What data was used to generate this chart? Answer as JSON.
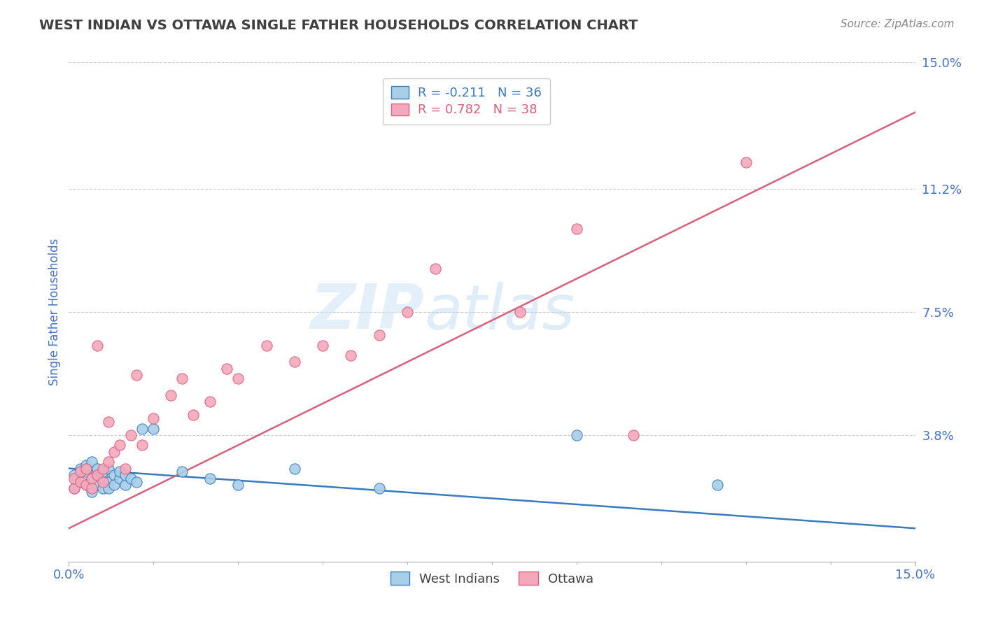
{
  "title": "WEST INDIAN VS OTTAWA SINGLE FATHER HOUSEHOLDS CORRELATION CHART",
  "source": "Source: ZipAtlas.com",
  "ylabel": "Single Father Households",
  "xlim": [
    0.0,
    0.15
  ],
  "ylim": [
    0.0,
    0.15
  ],
  "ytick_values": [
    0.038,
    0.075,
    0.112,
    0.15
  ],
  "ytick_labels": [
    "3.8%",
    "7.5%",
    "11.2%",
    "15.0%"
  ],
  "legend1_label": "R = -0.211   N = 36",
  "legend2_label": "R = 0.782   N = 38",
  "color_blue": "#a8cfe8",
  "color_pink": "#f4a8bc",
  "color_line_blue": "#3a7abf",
  "color_line_pink": "#d9607a",
  "watermark_zip": "ZIP",
  "watermark_atlas": "atlas",
  "title_color": "#404040",
  "tick_label_color": "#4472c4",
  "grid_color": "#cccccc",
  "west_indian_x": [
    0.001,
    0.001,
    0.002,
    0.002,
    0.003,
    0.003,
    0.003,
    0.004,
    0.004,
    0.004,
    0.005,
    0.005,
    0.005,
    0.006,
    0.006,
    0.006,
    0.007,
    0.007,
    0.007,
    0.008,
    0.008,
    0.009,
    0.009,
    0.01,
    0.01,
    0.011,
    0.012,
    0.013,
    0.015,
    0.02,
    0.025,
    0.03,
    0.04,
    0.055,
    0.09,
    0.115
  ],
  "west_indian_y": [
    0.026,
    0.022,
    0.028,
    0.024,
    0.027,
    0.023,
    0.029,
    0.025,
    0.021,
    0.03,
    0.026,
    0.023,
    0.028,
    0.025,
    0.022,
    0.027,
    0.024,
    0.028,
    0.022,
    0.026,
    0.023,
    0.025,
    0.027,
    0.023,
    0.026,
    0.025,
    0.024,
    0.04,
    0.04,
    0.027,
    0.025,
    0.023,
    0.028,
    0.022,
    0.038,
    0.023
  ],
  "ottawa_x": [
    0.001,
    0.001,
    0.002,
    0.002,
    0.003,
    0.003,
    0.004,
    0.004,
    0.005,
    0.005,
    0.006,
    0.006,
    0.007,
    0.007,
    0.008,
    0.009,
    0.01,
    0.011,
    0.012,
    0.013,
    0.015,
    0.018,
    0.02,
    0.022,
    0.025,
    0.028,
    0.03,
    0.035,
    0.04,
    0.045,
    0.05,
    0.055,
    0.06,
    0.065,
    0.08,
    0.09,
    0.1,
    0.12
  ],
  "ottawa_y": [
    0.022,
    0.025,
    0.024,
    0.027,
    0.023,
    0.028,
    0.025,
    0.022,
    0.026,
    0.065,
    0.028,
    0.024,
    0.03,
    0.042,
    0.033,
    0.035,
    0.028,
    0.038,
    0.056,
    0.035,
    0.043,
    0.05,
    0.055,
    0.044,
    0.048,
    0.058,
    0.055,
    0.065,
    0.06,
    0.065,
    0.062,
    0.068,
    0.075,
    0.088,
    0.075,
    0.1,
    0.038,
    0.12
  ],
  "wi_line_x": [
    0.0,
    0.15
  ],
  "wi_line_y": [
    0.028,
    0.01
  ],
  "ot_line_x": [
    0.0,
    0.15
  ],
  "ot_line_y": [
    0.01,
    0.135
  ]
}
